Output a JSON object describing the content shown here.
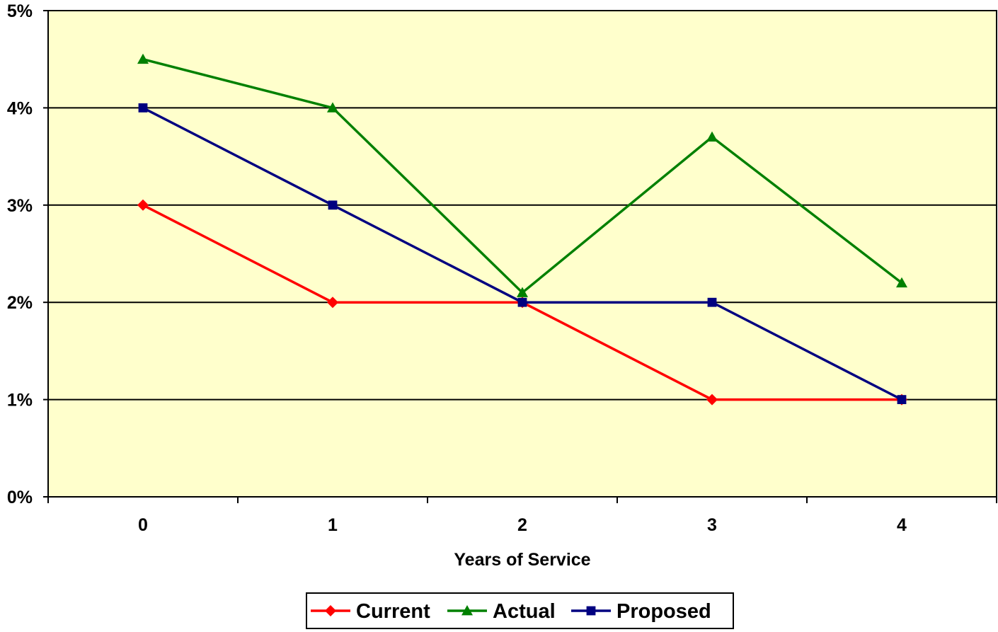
{
  "chart_data": {
    "type": "line",
    "title": "",
    "xlabel": "Years of Service",
    "ylabel": "",
    "x": [
      "0",
      "1",
      "2",
      "3",
      "4"
    ],
    "ylim": [
      0,
      5
    ],
    "y_ticks": [
      "0%",
      "1%",
      "2%",
      "3%",
      "4%",
      "5%"
    ],
    "y_tick_values": [
      0,
      1,
      2,
      3,
      4,
      5
    ],
    "grid": "horizontal",
    "legend_position": "bottom",
    "plot_background": "#FFFFCC",
    "series": [
      {
        "name": "Current",
        "color": "#FF0000",
        "marker": "diamond",
        "values": [
          3,
          2,
          2,
          1,
          1
        ]
      },
      {
        "name": "Actual",
        "color": "#008000",
        "marker": "triangle",
        "values": [
          4.5,
          4,
          2.1,
          3.7,
          2.2
        ]
      },
      {
        "name": "Proposed",
        "color": "#000080",
        "marker": "square",
        "values": [
          4,
          3,
          2,
          2,
          1
        ]
      }
    ]
  }
}
